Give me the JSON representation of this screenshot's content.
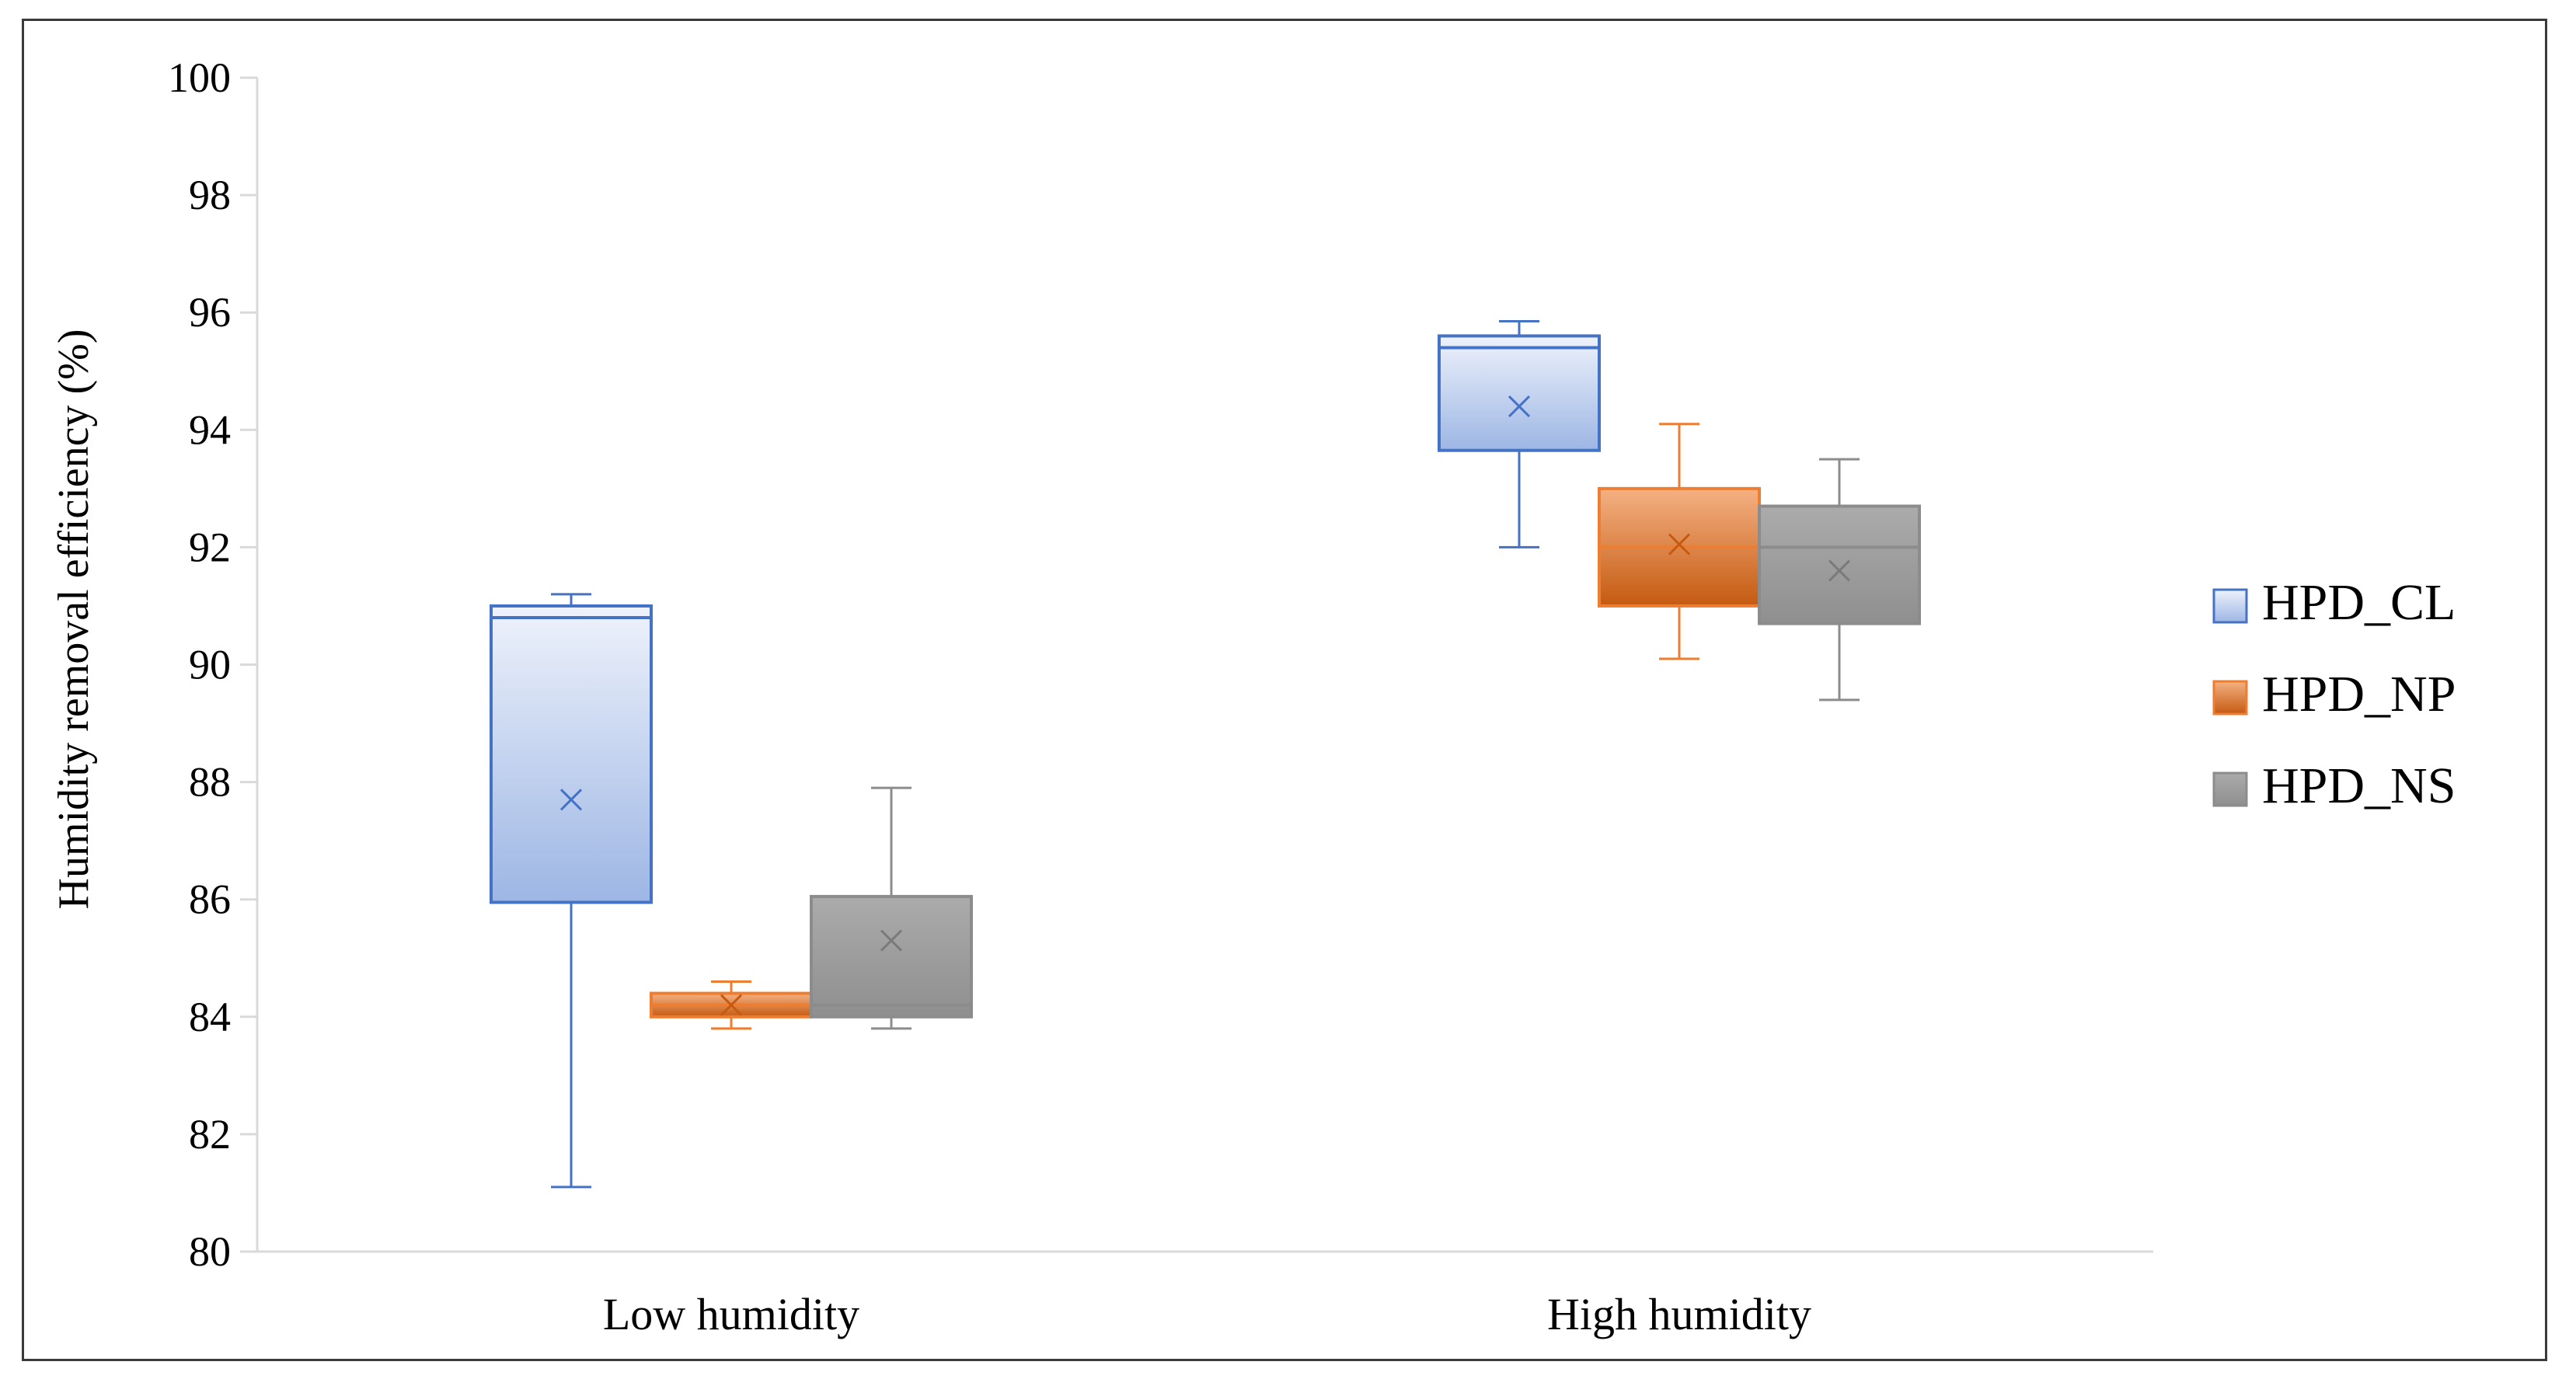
{
  "chart_data": {
    "type": "box",
    "title": "",
    "xlabel": "",
    "ylabel": "Humidity removal efficiency (%)",
    "ylim": [
      80,
      100
    ],
    "yticks": [
      80,
      82,
      84,
      86,
      88,
      90,
      92,
      94,
      96,
      98,
      100
    ],
    "categories": [
      "Low humidity",
      "High humidity"
    ],
    "legend_position": "right",
    "grid": false,
    "series": [
      {
        "name": "HPD_CL",
        "color": "#4472c4",
        "fill_top": "#eef2fb",
        "fill_bottom": "#9db6e4",
        "boxes": [
          {
            "min": 81.1,
            "q1": 85.95,
            "median": 90.8,
            "q3": 91.0,
            "max": 91.2,
            "mean": 87.7
          },
          {
            "min": 92.0,
            "q1": 93.65,
            "median": 95.4,
            "q3": 95.6,
            "max": 95.85,
            "mean": 94.4
          }
        ]
      },
      {
        "name": "HPD_NP",
        "color": "#ed7d31",
        "fill_top": "#f4b183",
        "fill_bottom": "#c55a11",
        "boxes": [
          {
            "min": 83.8,
            "q1": 84.0,
            "median": 84.2,
            "q3": 84.4,
            "max": 84.6,
            "mean": 84.2
          },
          {
            "min": 90.1,
            "q1": 91.0,
            "median": 92.0,
            "q3": 93.0,
            "max": 94.1,
            "mean": 92.05
          }
        ]
      },
      {
        "name": "HPD_NS",
        "color": "#8c8c8c",
        "fill_top": "#ababab",
        "fill_bottom": "#8f8f8f",
        "boxes": [
          {
            "min": 83.8,
            "q1": 84.0,
            "median": 84.2,
            "q3": 86.05,
            "max": 87.9,
            "mean": 85.3
          },
          {
            "min": 89.4,
            "q1": 90.7,
            "median": 92.0,
            "q3": 92.7,
            "max": 93.5,
            "mean": 91.6
          }
        ]
      }
    ]
  }
}
